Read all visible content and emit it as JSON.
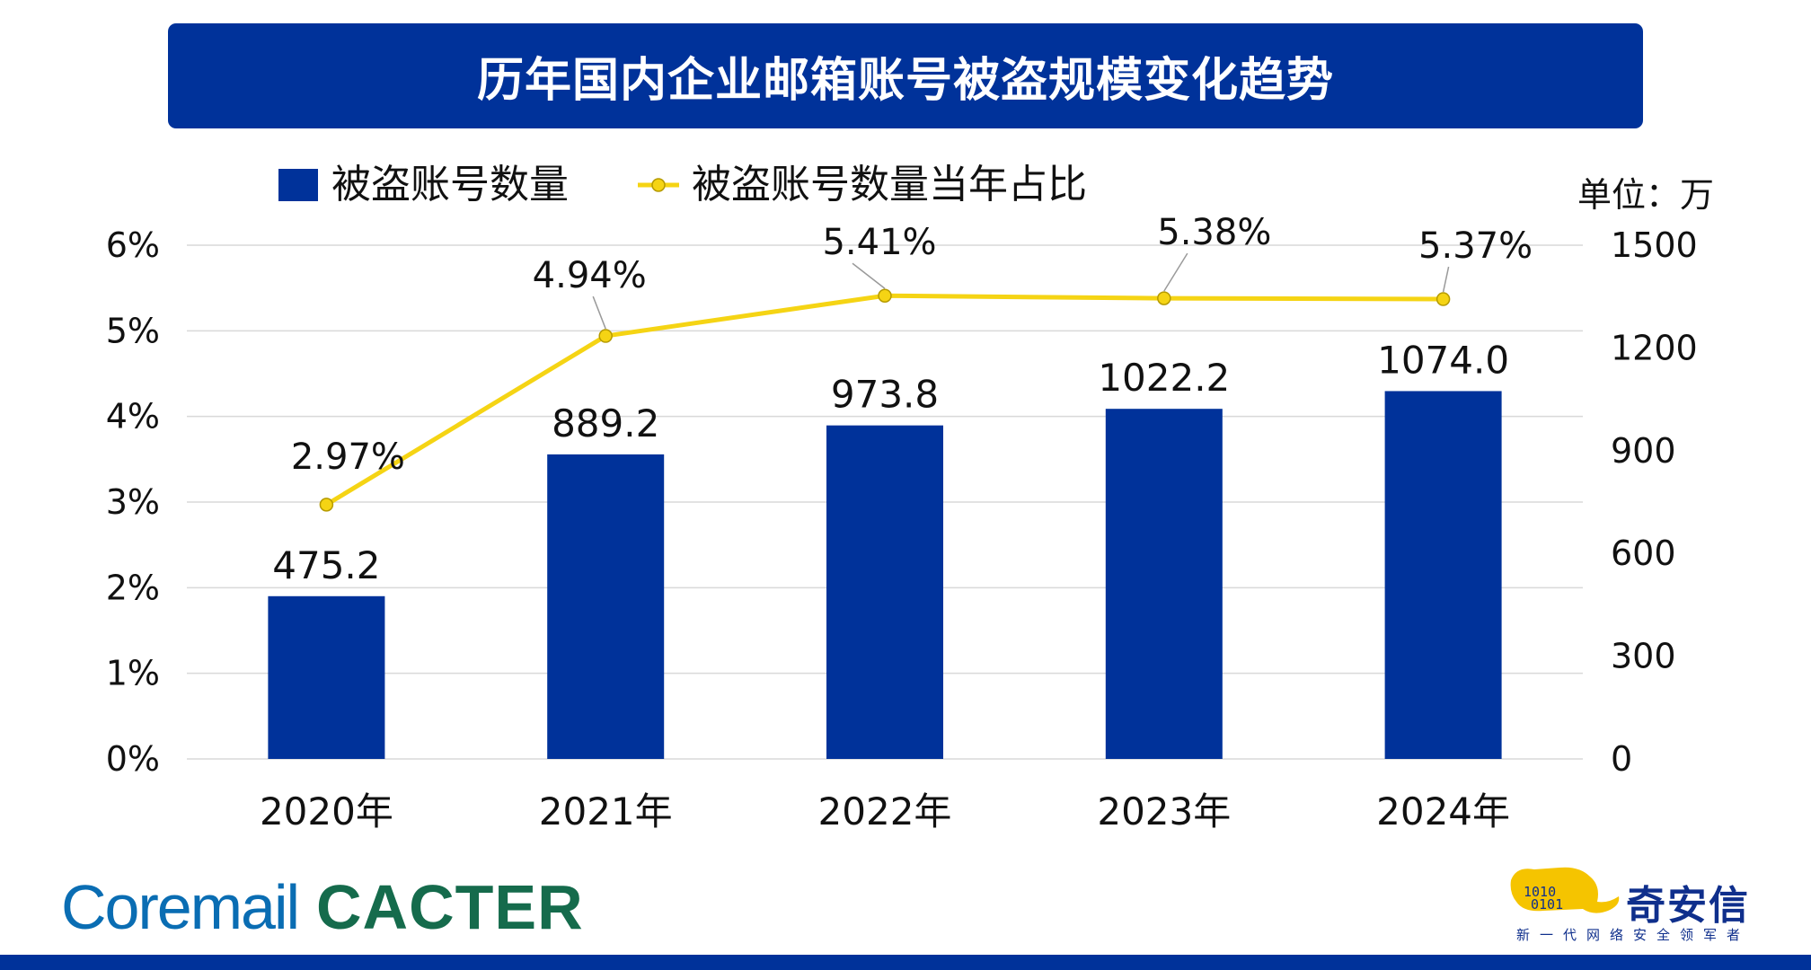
{
  "title": "历年国内企业邮箱账号被盗规模变化趋势",
  "unit_label": "单位：万",
  "logos": {
    "coremail": "Coremail",
    "cacter": "CACTER",
    "qax_name": "奇安信",
    "qax_slogan": "新一代网络安全领军者"
  },
  "colors": {
    "banner": "#00329a",
    "bar": "#00329a",
    "line": "#f5d414",
    "grid": "#d9d9d9",
    "text": "#111111",
    "bottom_bar": "#00329a"
  },
  "chart_data": {
    "type": "bar",
    "categories": [
      "2020年",
      "2021年",
      "2022年",
      "2023年",
      "2024年"
    ],
    "series": [
      {
        "name": "被盗账号数量",
        "type": "bar",
        "axis": "right",
        "values": [
          475.2,
          889.2,
          973.8,
          1022.2,
          1074.0
        ],
        "labels": [
          "475.2",
          "889.2",
          "973.8",
          "1022.2",
          "1074.0"
        ]
      },
      {
        "name": "被盗账号数量当年占比",
        "type": "line",
        "axis": "left",
        "values": [
          2.97,
          4.94,
          5.41,
          5.38,
          5.37
        ],
        "labels": [
          "2.97%",
          "4.94%",
          "5.41%",
          "5.38%",
          "5.37%"
        ]
      }
    ],
    "y_left": {
      "min": 0,
      "max": 6,
      "ticks": [
        "0%",
        "1%",
        "2%",
        "3%",
        "4%",
        "5%",
        "6%"
      ]
    },
    "y_right": {
      "min": 0,
      "max": 1500,
      "ticks": [
        "0",
        "300",
        "600",
        "900",
        "1200",
        "1500"
      ]
    },
    "grid": true,
    "legend_position": "top"
  }
}
